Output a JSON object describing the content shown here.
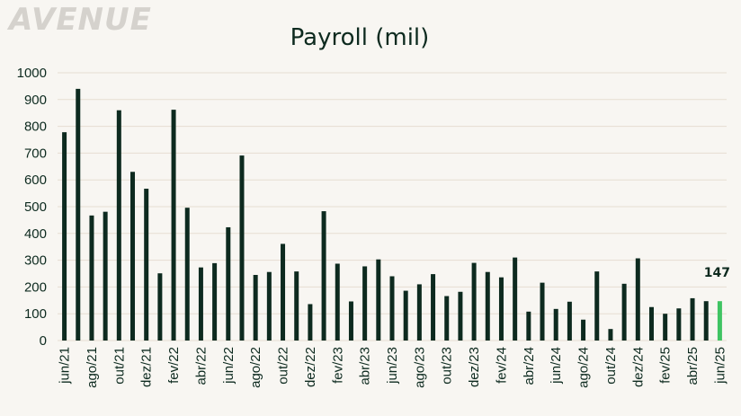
{
  "logo": {
    "text": "AVENUE"
  },
  "colors": {
    "background": "#f8f6f2",
    "bar": "#0d2a1f",
    "highlight": "#3fc463",
    "grid": "#e6ddd2",
    "text": "#0d2a1f",
    "logo": "#d5d2cd"
  },
  "chart_data": {
    "type": "bar",
    "title": "Payroll  (mil)",
    "xlabel": "",
    "ylabel": "",
    "ylim": [
      0,
      1000
    ],
    "yticks": [
      0,
      100,
      200,
      300,
      400,
      500,
      600,
      700,
      800,
      900,
      1000
    ],
    "grid": true,
    "legend": "none",
    "categories": [
      "jun/21",
      "jul/21",
      "ago/21",
      "set/21",
      "out/21",
      "nov/21",
      "dez/21",
      "jan/22",
      "fev/22",
      "mar/22",
      "abr/22",
      "mai/22",
      "jun/22",
      "jul/22",
      "ago/22",
      "set/22",
      "out/22",
      "nov/22",
      "dez/22",
      "jan/23",
      "fev/23",
      "mar/23",
      "abr/23",
      "mai/23",
      "jun/23",
      "jul/23",
      "ago/23",
      "set/23",
      "out/23",
      "nov/23",
      "dez/23",
      "jan/24",
      "fev/24",
      "mar/24",
      "abr/24",
      "mai/24",
      "jun/24",
      "jul/24",
      "ago/24",
      "set/24",
      "out/24",
      "nov/24",
      "dez/24",
      "jan/25",
      "fev/25",
      "mar/25",
      "abr/25",
      "mai/25",
      "jun/25"
    ],
    "tick_labels": [
      "jun/21",
      "ago/21",
      "out/21",
      "dez/21",
      "fev/22",
      "abr/22",
      "jun/22",
      "ago/22",
      "out/22",
      "dez/22",
      "fev/23",
      "abr/23",
      "jun/23",
      "ago/23",
      "out/23",
      "dez/23",
      "fev/24",
      "abr/24",
      "jun/24",
      "ago/24",
      "out/24",
      "dez/24",
      "fev/25",
      "abr/25",
      "jun/25"
    ],
    "values": [
      778,
      940,
      467,
      481,
      860,
      630,
      567,
      251,
      862,
      496,
      273,
      289,
      423,
      691,
      245,
      256,
      361,
      258,
      136,
      483,
      287,
      146,
      277,
      303,
      240,
      186,
      210,
      248,
      166,
      182,
      290,
      256,
      236,
      310,
      108,
      216,
      118,
      145,
      78,
      258,
      43,
      212,
      307,
      125,
      100,
      120,
      158,
      147,
      147
    ],
    "highlight_index": 48,
    "data_labels": [
      {
        "index": 48,
        "text": "147"
      }
    ]
  }
}
